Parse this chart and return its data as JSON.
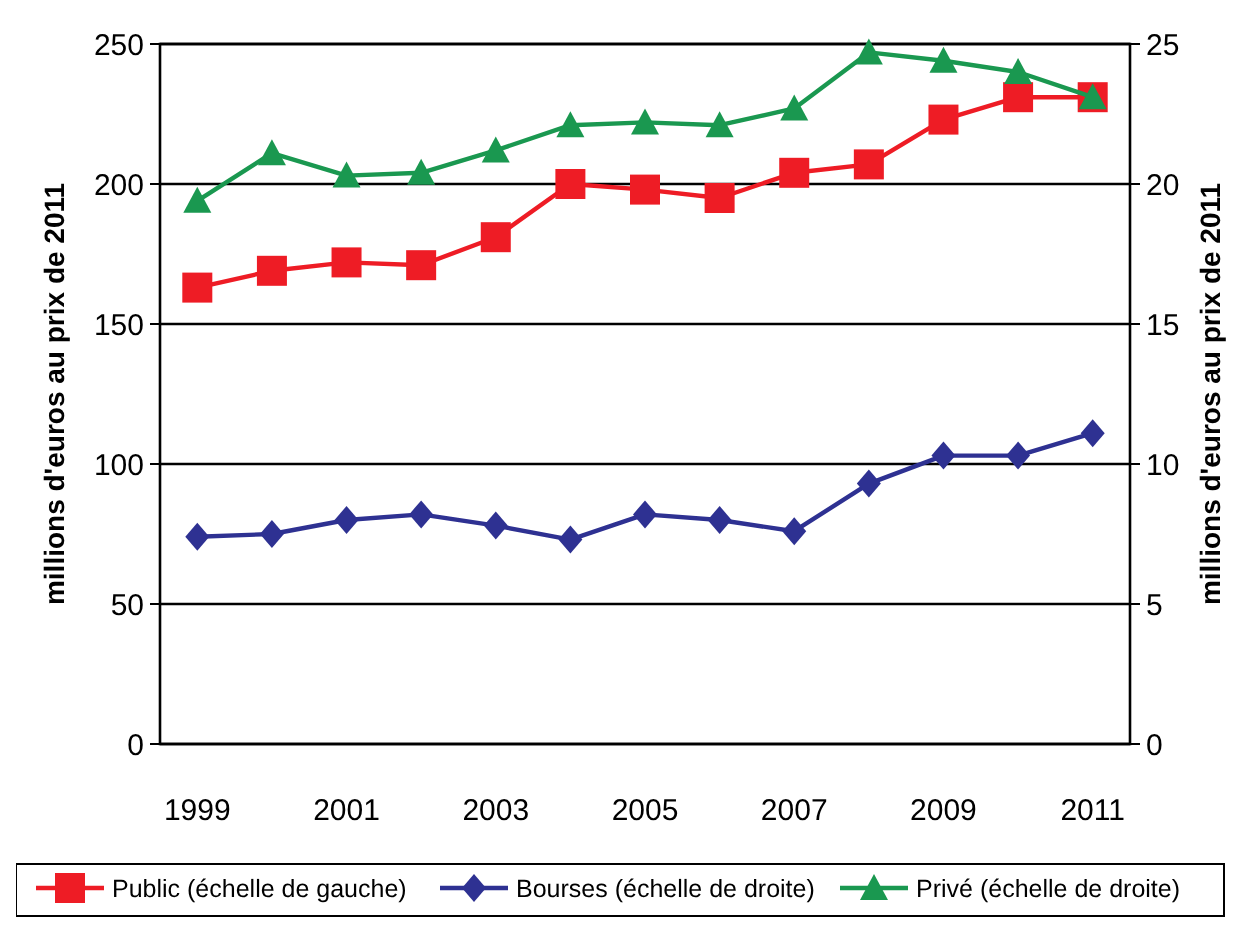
{
  "chart_data": {
    "type": "line",
    "ylabel": "millions d'euros au prix de 2011",
    "y2label": "millions d'euros au prix de 2011",
    "x": [
      1999,
      2000,
      2001,
      2002,
      2003,
      2004,
      2005,
      2006,
      2007,
      2008,
      2009,
      2010,
      2011
    ],
    "xlim": [
      1998.5,
      2011.5
    ],
    "xticks": [
      1999,
      2001,
      2003,
      2005,
      2007,
      2009,
      2011
    ],
    "ylim": [
      0,
      250
    ],
    "yticks": [
      0,
      50,
      100,
      150,
      200,
      250
    ],
    "y2lim": [
      0,
      25
    ],
    "y2ticks": [
      0,
      5,
      10,
      15,
      20,
      25
    ],
    "grid": "y",
    "legend": "bottom",
    "series": [
      {
        "name": "Public (échelle de gauche)",
        "color": "#ee1c25",
        "marker": "square",
        "values": [
          163,
          169,
          172,
          171,
          181,
          200,
          198,
          195,
          204,
          207,
          223,
          231,
          231
        ]
      },
      {
        "name": "Bourses (échelle de droite)",
        "color": "#2e3192",
        "marker": "diamond",
        "axis": "y2",
        "values": [
          7.4,
          7.5,
          8.0,
          8.2,
          7.8,
          7.3,
          8.2,
          8.0,
          7.6,
          9.3,
          10.3,
          10.3,
          11.1
        ]
      },
      {
        "name": "Privé (échelle de droite)",
        "color": "#1a9850",
        "marker": "triangle",
        "axis": "y2",
        "values": [
          19.4,
          21.1,
          20.3,
          20.4,
          21.2,
          22.1,
          22.2,
          22.1,
          22.7,
          24.7,
          24.4,
          24.0,
          23.1
        ]
      }
    ]
  }
}
